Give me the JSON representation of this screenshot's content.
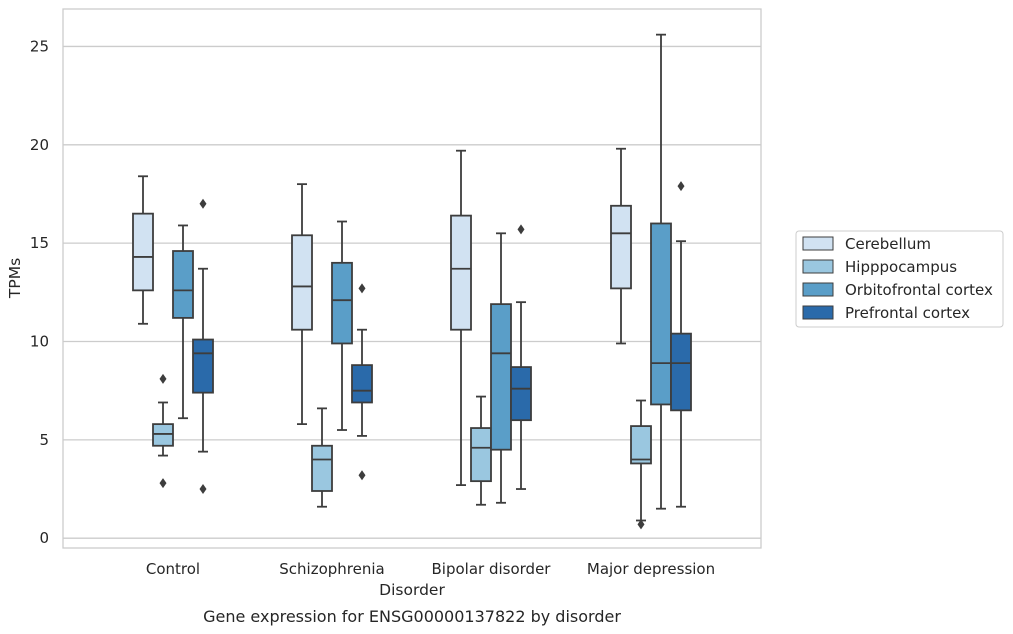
{
  "chart_data": {
    "type": "box",
    "title": "",
    "caption": "Gene expression for ENSG00000137822 by disorder",
    "xlabel": "Disorder",
    "ylabel": "TPMs",
    "ylim": [
      -0.5,
      26.5
    ],
    "yticks": [
      0,
      5,
      10,
      15,
      20,
      25
    ],
    "grid": true,
    "legend_position": "right",
    "categories": [
      "Control",
      "Schizophrenia",
      "Bipolar disorder",
      "Major depression"
    ],
    "series": [
      {
        "name": "Cerebellum",
        "color": "#d1e2f2",
        "boxes": [
          {
            "whislo": 10.9,
            "q1": 12.6,
            "med": 14.3,
            "q3": 16.5,
            "whishi": 18.4,
            "fliers": []
          },
          {
            "whislo": 5.8,
            "q1": 10.6,
            "med": 12.8,
            "q3": 15.4,
            "whishi": 18.0,
            "fliers": []
          },
          {
            "whislo": 2.7,
            "q1": 10.6,
            "med": 13.7,
            "q3": 16.4,
            "whishi": 19.7,
            "fliers": []
          },
          {
            "whislo": 9.9,
            "q1": 12.7,
            "med": 15.5,
            "q3": 16.9,
            "whishi": 19.8,
            "fliers": []
          }
        ]
      },
      {
        "name": "Hipppocampus",
        "color": "#9ac7e0",
        "boxes": [
          {
            "whislo": 4.2,
            "q1": 4.7,
            "med": 5.3,
            "q3": 5.8,
            "whishi": 6.9,
            "fliers": [
              8.1,
              2.8
            ]
          },
          {
            "whislo": 1.6,
            "q1": 2.4,
            "med": 4.0,
            "q3": 4.7,
            "whishi": 6.6,
            "fliers": []
          },
          {
            "whislo": 1.7,
            "q1": 2.9,
            "med": 4.6,
            "q3": 5.6,
            "whishi": 7.2,
            "fliers": []
          },
          {
            "whislo": 0.9,
            "q1": 3.8,
            "med": 4.0,
            "q3": 5.7,
            "whishi": 7.0,
            "fliers": [
              0.7
            ]
          }
        ]
      },
      {
        "name": "Orbitofrontal cortex",
        "color": "#5a9ec8",
        "boxes": [
          {
            "whislo": 6.1,
            "q1": 11.2,
            "med": 12.6,
            "q3": 14.6,
            "whishi": 15.9,
            "fliers": []
          },
          {
            "whislo": 5.5,
            "q1": 9.9,
            "med": 12.1,
            "q3": 14.0,
            "whishi": 16.1,
            "fliers": []
          },
          {
            "whislo": 1.8,
            "q1": 4.5,
            "med": 9.4,
            "q3": 11.9,
            "whishi": 15.5,
            "fliers": []
          },
          {
            "whislo": 1.5,
            "q1": 6.8,
            "med": 8.9,
            "q3": 16.0,
            "whishi": 25.6,
            "fliers": []
          }
        ]
      },
      {
        "name": "Prefrontal cortex",
        "color": "#2a6aaa",
        "boxes": [
          {
            "whislo": 4.4,
            "q1": 7.4,
            "med": 9.4,
            "q3": 10.1,
            "whishi": 13.7,
            "fliers": [
              17.0,
              2.5
            ]
          },
          {
            "whislo": 5.2,
            "q1": 6.9,
            "med": 7.5,
            "q3": 8.8,
            "whishi": 10.6,
            "fliers": [
              12.7,
              3.2
            ]
          },
          {
            "whislo": 2.5,
            "q1": 6.0,
            "med": 7.6,
            "q3": 8.7,
            "whishi": 12.0,
            "fliers": [
              15.7
            ]
          },
          {
            "whislo": 1.6,
            "q1": 6.5,
            "med": 8.9,
            "q3": 10.4,
            "whishi": 15.1,
            "fliers": [
              17.9
            ]
          }
        ]
      }
    ]
  }
}
